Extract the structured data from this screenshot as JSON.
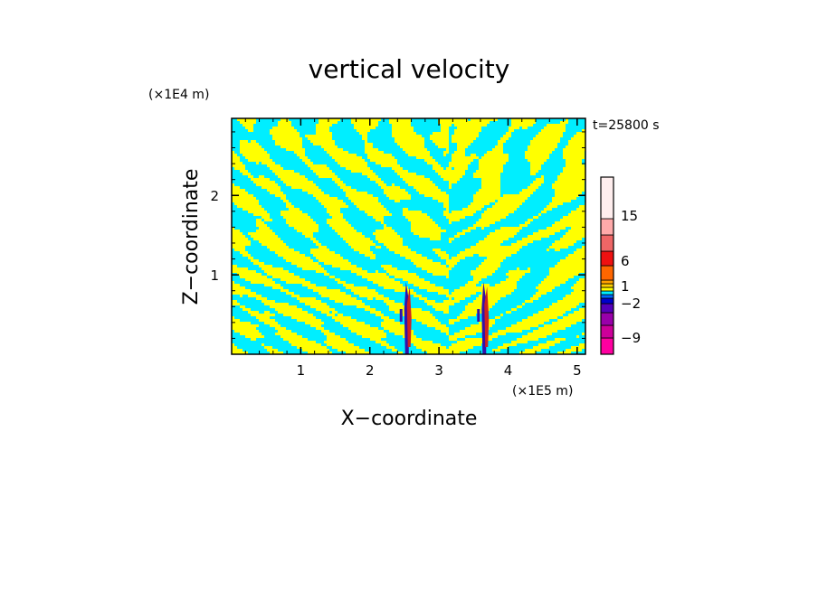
{
  "chart_data": {
    "type": "heatmap",
    "title": "vertical velocity",
    "xlabel": "X−coordinate",
    "ylabel": "Z−coordinate",
    "x_unit_label": "(×1E5 m)",
    "y_unit_label": "(×1E4 m)",
    "time_label": "t=25800 s",
    "xlim": [
      0,
      5.12
    ],
    "ylim": [
      0,
      2.97
    ],
    "x_ticks": [
      1,
      2,
      3,
      4,
      5
    ],
    "y_ticks": [
      1,
      2
    ],
    "x_tick_labels": [
      "1",
      "2",
      "3",
      "4",
      "5"
    ],
    "y_tick_labels": [
      "1",
      "2"
    ],
    "colorbar": {
      "tick_labels": [
        "15",
        "6",
        "1",
        "−2",
        "−9"
      ],
      "tick_values": [
        15,
        6,
        1,
        -2,
        -9
      ],
      "levels": [
        {
          "color": "#ff00a0"
        },
        {
          "color": "#cc0099"
        },
        {
          "color": "#9900aa"
        },
        {
          "color": "#5500bb"
        },
        {
          "color": "#0000cc"
        },
        {
          "color": "#0066ff"
        },
        {
          "color": "#00eeff"
        },
        {
          "color": "#ffff00"
        },
        {
          "color": "#ffd000"
        },
        {
          "color": "#ffa000"
        },
        {
          "color": "#ff6600"
        },
        {
          "color": "#ee1111"
        },
        {
          "color": "#ee6666"
        },
        {
          "color": "#ffaaaa"
        },
        {
          "color": "#ffeeee"
        }
      ]
    },
    "field_colors": {
      "positive": "#ffff00",
      "negative": "#00eeff",
      "strong_up": "#cc2222",
      "strong_down": "#3311aa"
    },
    "updraft_x": [
      2.55,
      3.67
    ]
  }
}
